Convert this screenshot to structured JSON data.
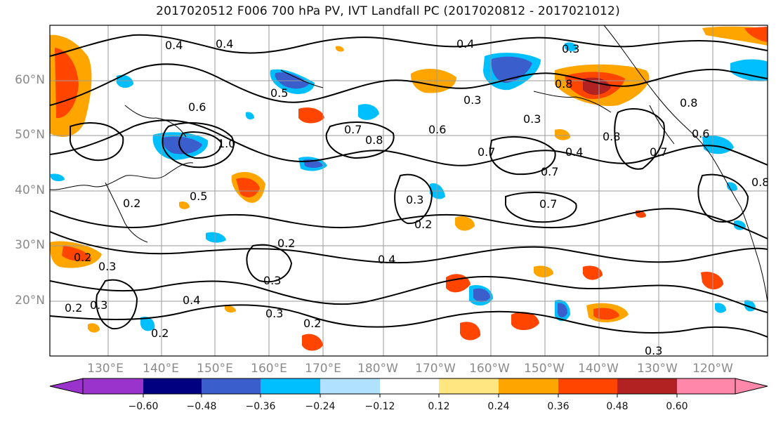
{
  "title": "2017020512 F006 700 hPa PV, IVT Landfall PC (2017020812 - 2017021012)",
  "lat_labels": [
    "60°N",
    "50°N",
    "40°N",
    "30°N",
    "20°N"
  ],
  "lon_labels": [
    "130°E",
    "140°E",
    "150°E",
    "160°E",
    "170°E",
    "180°W",
    "170°W",
    "160°W",
    "150°W",
    "140°W",
    "130°W",
    "120°W"
  ],
  "colorbar": {
    "colors": [
      "#9933cc",
      "#000080",
      "#3a5fcd",
      "#00bfff",
      "#b0e2ff",
      "#ffffff",
      "#ffe680",
      "#ffa500",
      "#ff4500",
      "#b22222",
      "#ff88aa"
    ],
    "ticks": [
      "−0.60",
      "−0.48",
      "−0.36",
      "−0.24",
      "−0.12",
      "0.12",
      "0.24",
      "0.36",
      "0.48",
      "0.60"
    ]
  },
  "contour_labels": [
    "0.4",
    "0.3",
    "0.2",
    "0.5",
    "0.6",
    "0.7",
    "0.8",
    "1.0"
  ]
}
